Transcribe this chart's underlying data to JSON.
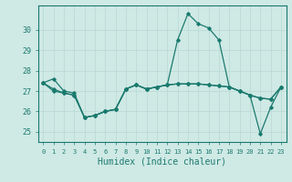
{
  "title": "",
  "xlabel": "Humidex (Indice chaleur)",
  "ylabel": "",
  "background_color": "#cfe9e5",
  "line_color": "#1a7a6e",
  "grid_color": "#b8d8d4",
  "ylim": [
    24.5,
    31.2
  ],
  "xlim": [
    -0.5,
    23.5
  ],
  "yticks": [
    25,
    26,
    27,
    28,
    29,
    30
  ],
  "xticks": [
    0,
    1,
    2,
    3,
    4,
    5,
    6,
    7,
    8,
    9,
    10,
    11,
    12,
    13,
    14,
    15,
    16,
    17,
    18,
    19,
    20,
    21,
    22,
    23
  ],
  "series1": [
    27.4,
    27.6,
    27.0,
    26.9,
    25.7,
    25.8,
    26.0,
    26.1,
    27.1,
    27.3,
    27.1,
    27.2,
    27.3,
    27.35,
    27.35,
    27.35,
    27.3,
    27.25,
    27.2,
    27.0,
    26.8,
    26.65,
    26.6,
    27.2
  ],
  "series2": [
    27.4,
    27.1,
    26.9,
    26.8,
    25.7,
    25.8,
    26.0,
    26.1,
    27.1,
    27.3,
    27.1,
    27.2,
    27.3,
    29.5,
    30.8,
    30.3,
    30.1,
    29.5,
    27.2,
    27.0,
    26.8,
    26.65,
    26.6,
    27.2
  ],
  "series3": [
    27.4,
    27.0,
    26.9,
    26.8,
    25.7,
    25.8,
    26.0,
    26.1,
    27.1,
    27.3,
    27.1,
    27.2,
    27.3,
    27.35,
    27.35,
    27.35,
    27.3,
    27.25,
    27.2,
    27.0,
    26.8,
    24.9,
    26.2,
    27.2
  ]
}
